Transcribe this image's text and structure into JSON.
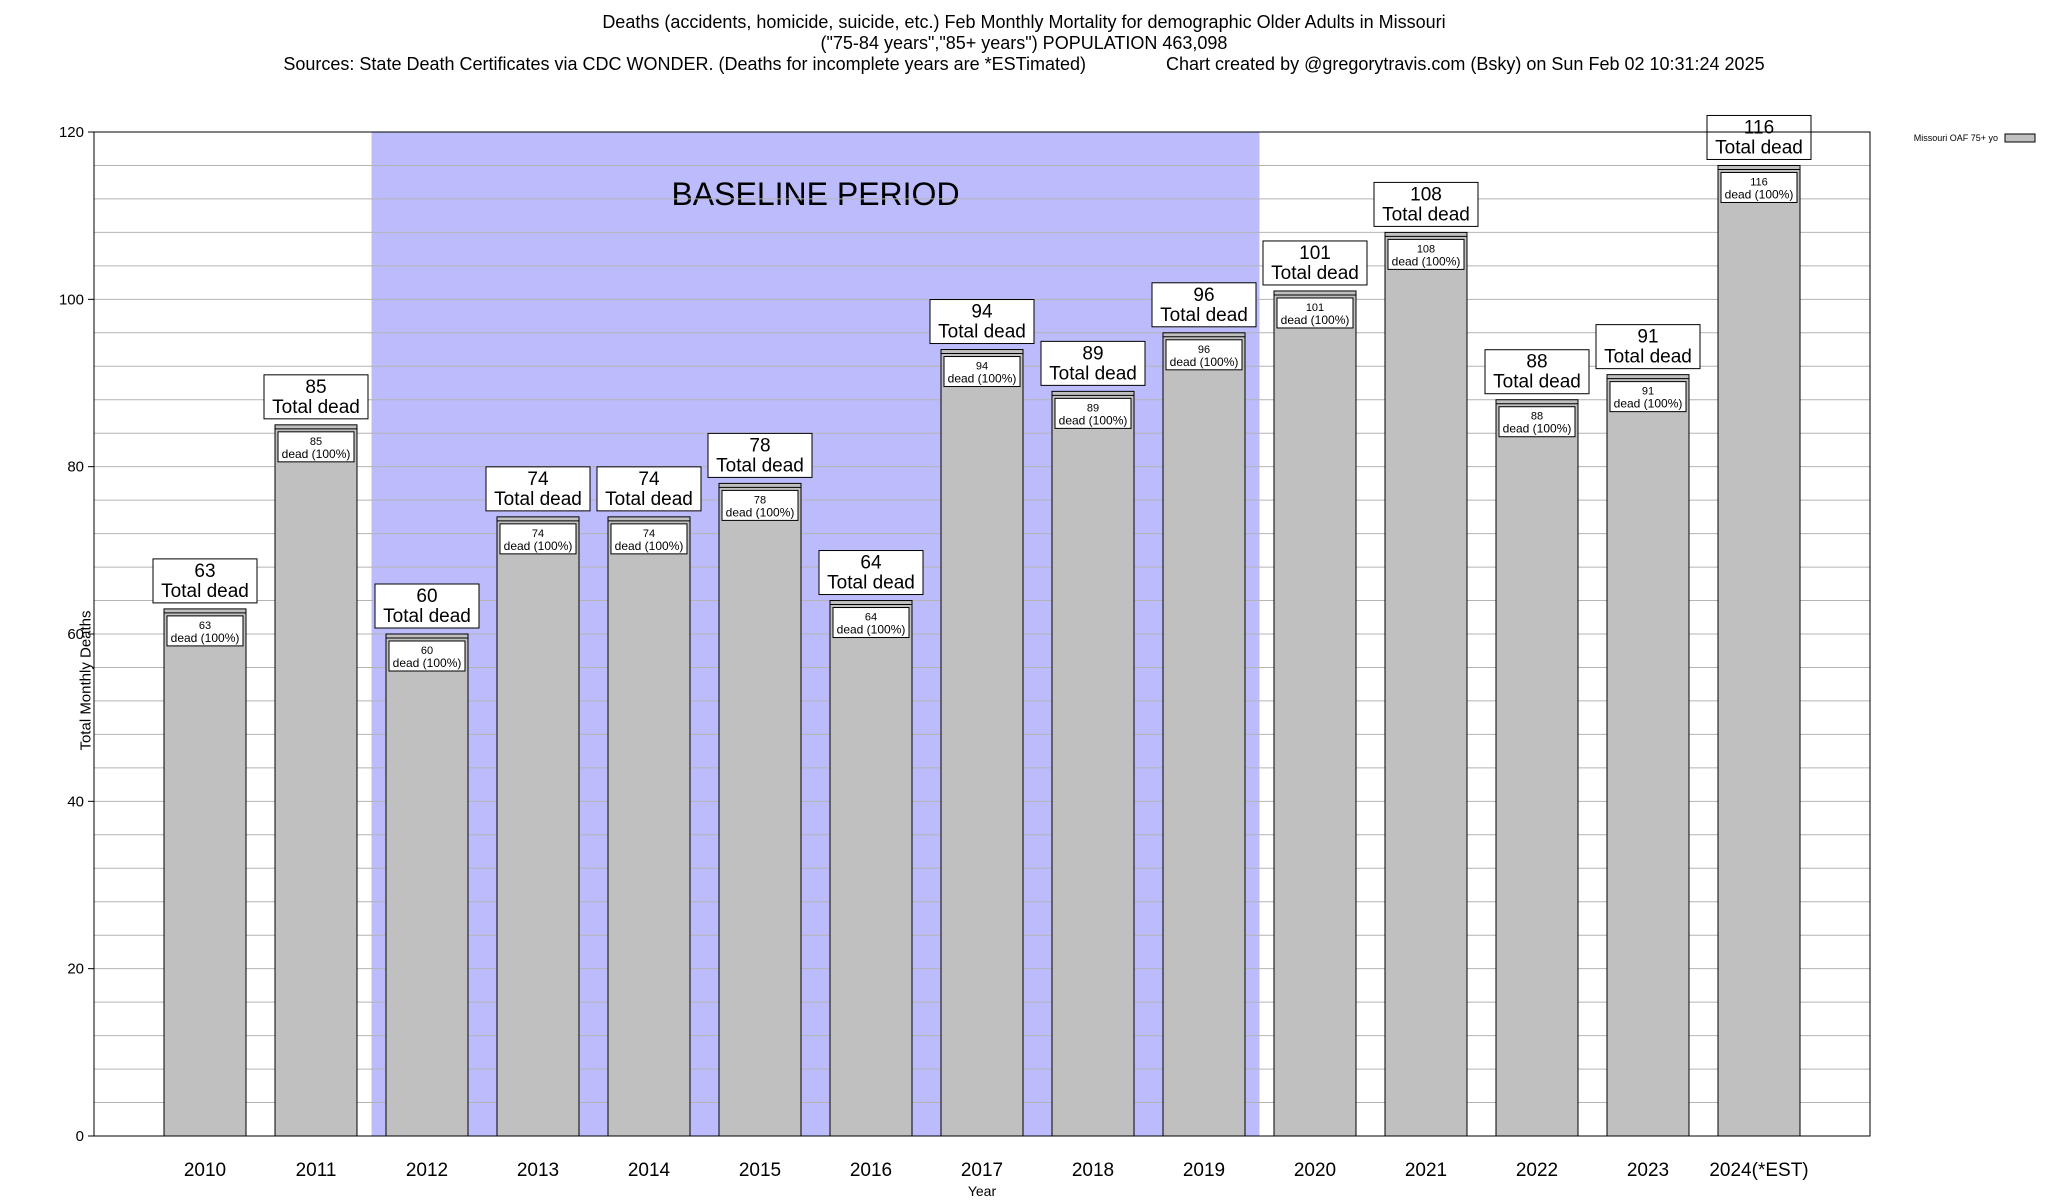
{
  "title": {
    "line1": "Deaths (accidents, homicide, suicide, etc.) Feb Monthly Mortality for demographic Older Adults in Missouri",
    "line2": "(\"75-84 years\",\"85+ years\") POPULATION 463,098",
    "line3": "Sources: State Death Certificates via CDC WONDER. (Deaths for incomplete years are *ESTimated)                Chart created by @gregorytravis.com (Bsky) on Sun Feb 02 10:31:24 2025"
  },
  "chart_data": {
    "type": "bar",
    "xlabel": "Year",
    "ylabel": "Total Monthly Deaths",
    "ylim": [
      0,
      120
    ],
    "yticks": [
      0,
      20,
      40,
      60,
      80,
      100,
      120
    ],
    "categories": [
      "2010",
      "2011",
      "2012",
      "2013",
      "2014",
      "2015",
      "2016",
      "2017",
      "2018",
      "2019",
      "2020",
      "2021",
      "2022",
      "2023",
      "2024(*EST)"
    ],
    "series": [
      {
        "name": "Missouri OAF 75+ yo",
        "values": [
          63,
          85,
          60,
          74,
          74,
          78,
          64,
          94,
          89,
          96,
          101,
          108,
          88,
          91,
          116
        ]
      }
    ],
    "bar_label_text": "Total dead",
    "inner_label_text": "dead (100%)",
    "baseline_period": {
      "label": "BASELINE PERIOD",
      "from": "2012",
      "to": "2019"
    },
    "legend_position": "top-right",
    "grid": true,
    "colors": {
      "bar": "#c0c0c0",
      "baseline": "#bcbcfd",
      "grid": "#b4b4b4"
    }
  }
}
